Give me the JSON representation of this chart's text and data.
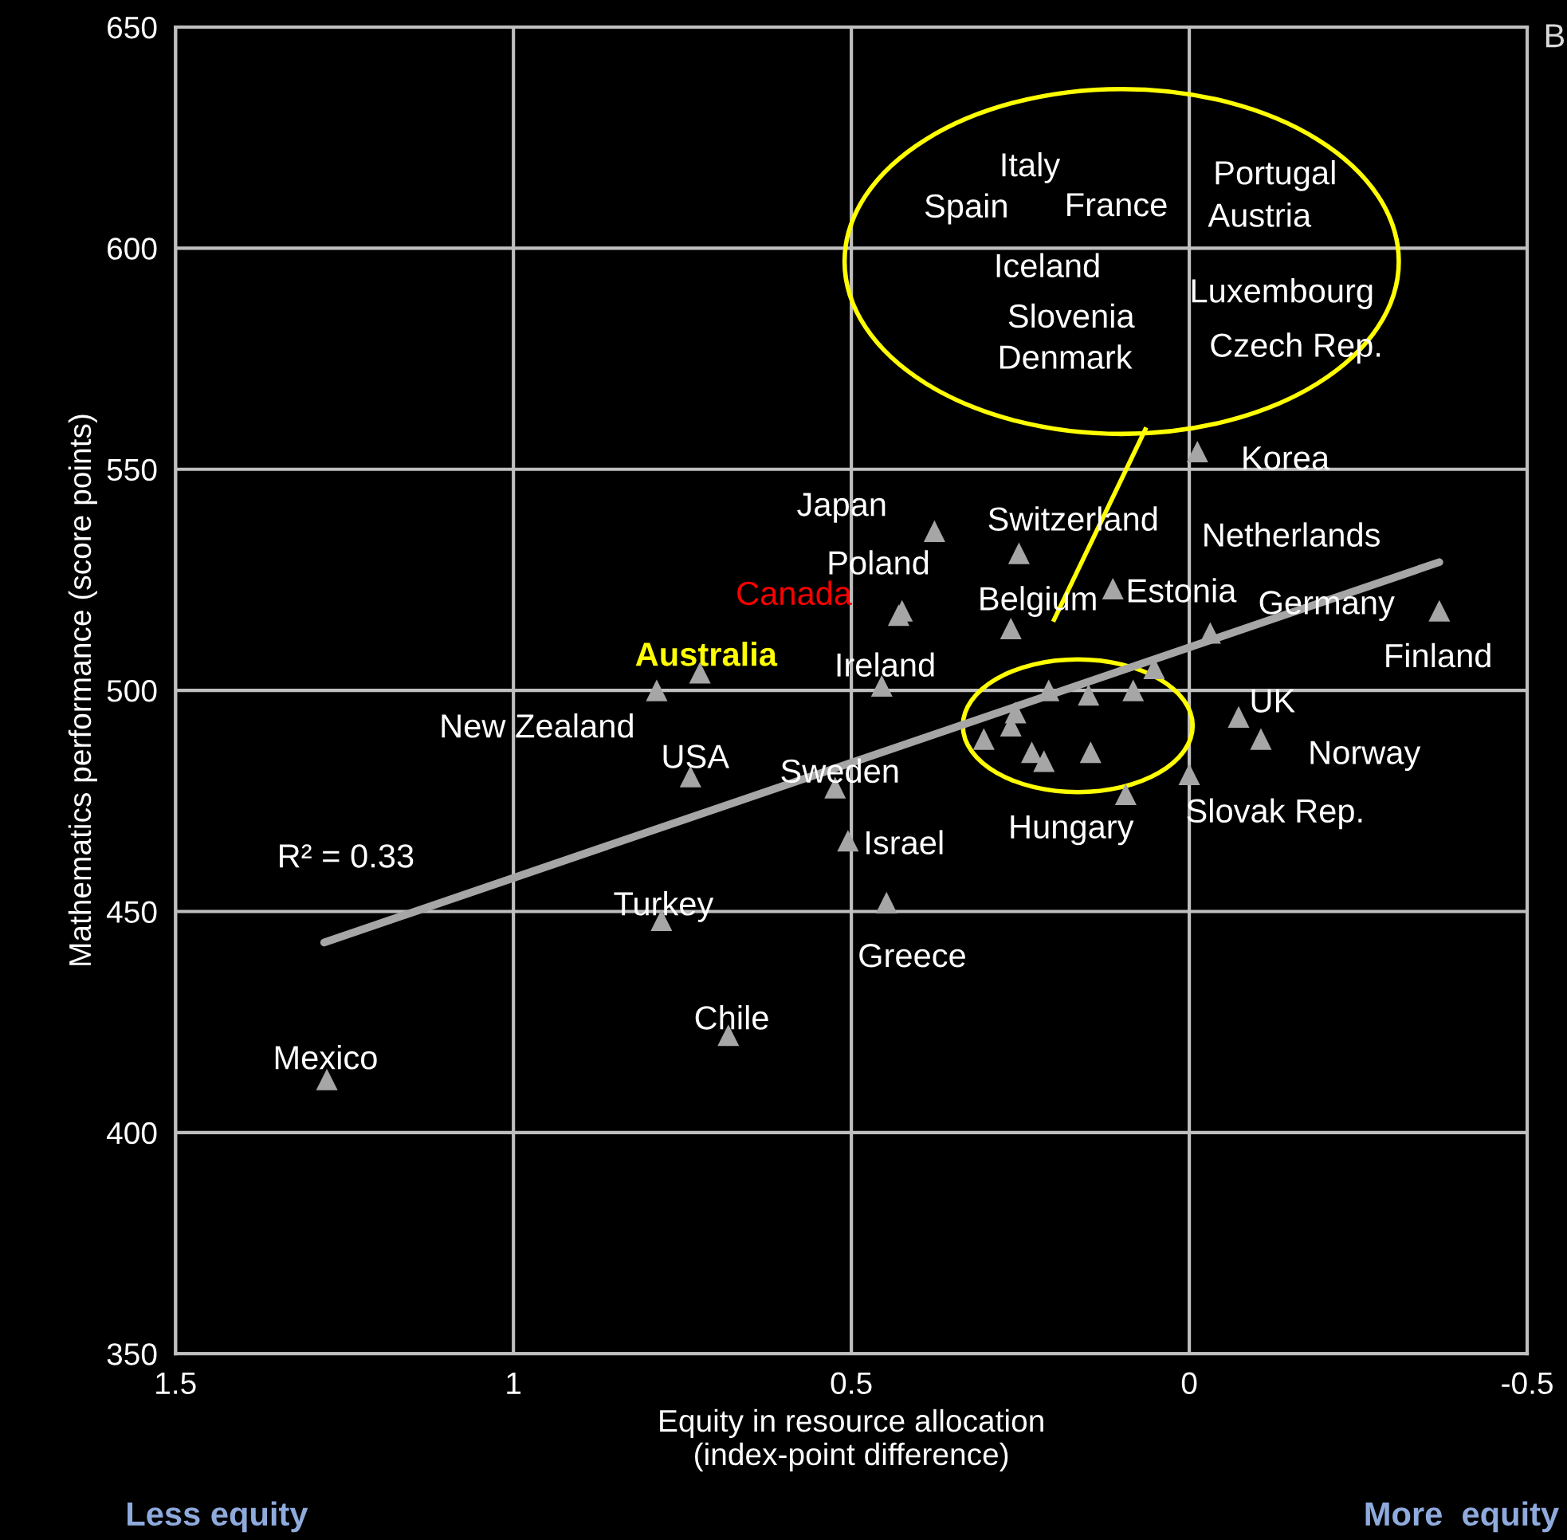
{
  "chart_data": {
    "type": "scatter",
    "xlabel": "Equity in resource allocation\n(index-point difference)",
    "ylabel": "Mathematics performance (score points)",
    "xlim": [
      1.5,
      -0.5
    ],
    "ylim": [
      350,
      650
    ],
    "xticks": [
      1.5,
      1,
      0.5,
      0,
      {
        "value": -0.5,
        "label": "-0.5"
      }
    ],
    "yticks": [
      350,
      400,
      450,
      500,
      550,
      600,
      650
    ],
    "grid": true,
    "marker": "triangle",
    "series": [
      {
        "color": "#a6a6a6",
        "x": [
          1.276,
          0.682,
          0.781,
          0.448,
          0.505,
          0.524,
          0.738,
          0.788,
          0.724,
          0.455,
          0.43,
          0.425,
          0.377,
          0.252,
          0.264,
          0.113,
          -0.031,
          -0.012,
          -0.37,
          0.208,
          0.149,
          0.083,
          0.052,
          0.257,
          0.264,
          0.304,
          0.233,
          0.215,
          0.146,
          0.094,
          0.0,
          -0.073,
          -0.106
        ],
        "values": [
          412,
          422,
          448,
          452,
          466,
          478,
          480.5,
          500,
          504,
          501,
          517,
          518,
          536,
          531,
          514,
          523,
          513,
          554,
          518,
          500,
          499,
          500,
          505,
          495,
          492,
          489,
          486,
          484,
          486,
          476.5,
          481,
          494,
          489
        ]
      },
      {
        "type": "line",
        "marker": "none",
        "color": "#a6a6a6",
        "x": [
          1.28,
          -0.37
        ],
        "values": [
          443,
          529
        ]
      }
    ],
    "annotations": [
      "Italy",
      "Spain",
      "France",
      "Portugal",
      "Austria",
      "Iceland",
      "Luxembourg",
      "Slovenia",
      "Denmark",
      "Czech Rep.",
      "Korea",
      "Japan",
      "Switzerland",
      "Netherlands",
      "Poland",
      "Canada",
      "Belgium",
      "Estonia",
      "Germany",
      "Australia",
      "Ireland",
      "Finland",
      "New Zealand",
      "UK",
      "USA",
      "Norway",
      "Sweden",
      "Hungary",
      "Slovak Rep.",
      "Israel",
      "R² = 0.33",
      "Turkey",
      "Greece",
      "Chile",
      "Mexico",
      "B",
      "Less equity",
      "More  equity"
    ]
  }
}
